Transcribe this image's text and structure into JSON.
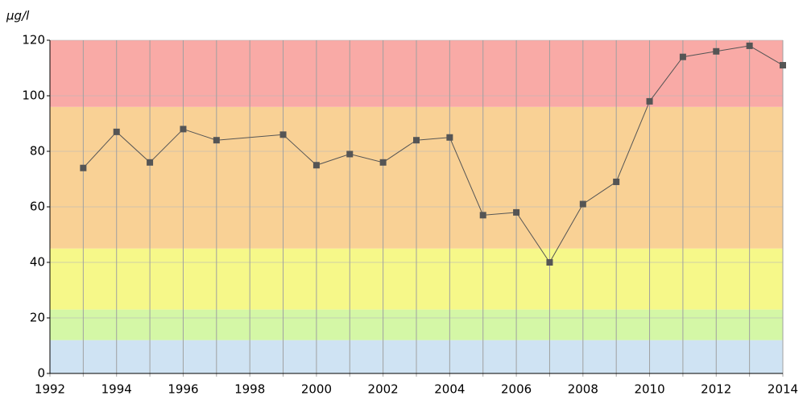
{
  "chart_data": {
    "type": "line",
    "y_label": "μg/l",
    "x": [
      1993,
      1994,
      1995,
      1996,
      1997,
      1999,
      2000,
      2001,
      2002,
      2003,
      2004,
      2005,
      2006,
      2007,
      2008,
      2009,
      2010,
      2011,
      2012,
      2013,
      2014
    ],
    "series": [
      {
        "color": "#555555",
        "values": [
          74,
          87,
          76,
          88,
          84,
          86,
          75,
          79,
          76,
          84,
          85,
          57,
          58,
          40,
          61,
          69,
          98,
          114,
          116,
          118,
          111
        ]
      }
    ],
    "xlim": [
      1992,
      2014
    ],
    "ylim": [
      0,
      120
    ],
    "xticks": [
      1992,
      1994,
      1996,
      1998,
      2000,
      2002,
      2004,
      2006,
      2008,
      2010,
      2012,
      2014
    ],
    "x_minor_ticks": [
      1993,
      1995,
      1997,
      1999,
      2001,
      2003,
      2005,
      2007,
      2009,
      2011,
      2013
    ],
    "yticks": [
      0,
      20,
      40,
      60,
      80,
      100,
      120
    ],
    "bands": [
      {
        "from": 0,
        "to": 12,
        "color": "#cfe3f3"
      },
      {
        "from": 12,
        "to": 23,
        "color": "#d4f7a6"
      },
      {
        "from": 23,
        "to": 45,
        "color": "#f6f889"
      },
      {
        "from": 45,
        "to": 96,
        "color": "#f9d195"
      },
      {
        "from": 96,
        "to": 120,
        "color": "#f9aaa6"
      }
    ],
    "grid": true
  }
}
